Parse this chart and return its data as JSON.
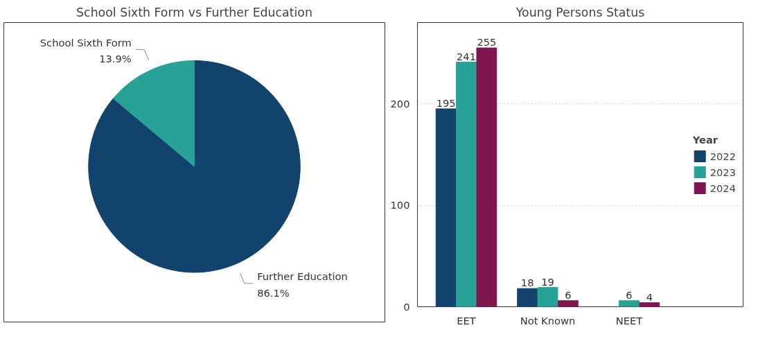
{
  "chart_data": [
    {
      "type": "pie",
      "title": "School Sixth Form vs Further Education",
      "categories": [
        "Further Education",
        "School Sixth Form"
      ],
      "values": [
        86.1,
        13.9
      ],
      "colors": [
        "#12436d",
        "#28a197"
      ],
      "value_labels": [
        "86.1%",
        "13.9%"
      ]
    },
    {
      "type": "bar",
      "title": "Young Persons Status",
      "categories": [
        "EET",
        "Not Known",
        "NEET"
      ],
      "legend_title": "Year",
      "legend": "right",
      "grid": "y",
      "data_labels": true,
      "ylim": [
        0,
        280
      ],
      "yticks": [
        0,
        100,
        200
      ],
      "series": [
        {
          "name": "2022",
          "color": "#12436d",
          "values": [
            195,
            18,
            null
          ]
        },
        {
          "name": "2023",
          "color": "#28a197",
          "values": [
            241,
            19,
            6
          ]
        },
        {
          "name": "2024",
          "color": "#801650",
          "values": [
            255,
            6,
            4
          ]
        }
      ]
    }
  ]
}
